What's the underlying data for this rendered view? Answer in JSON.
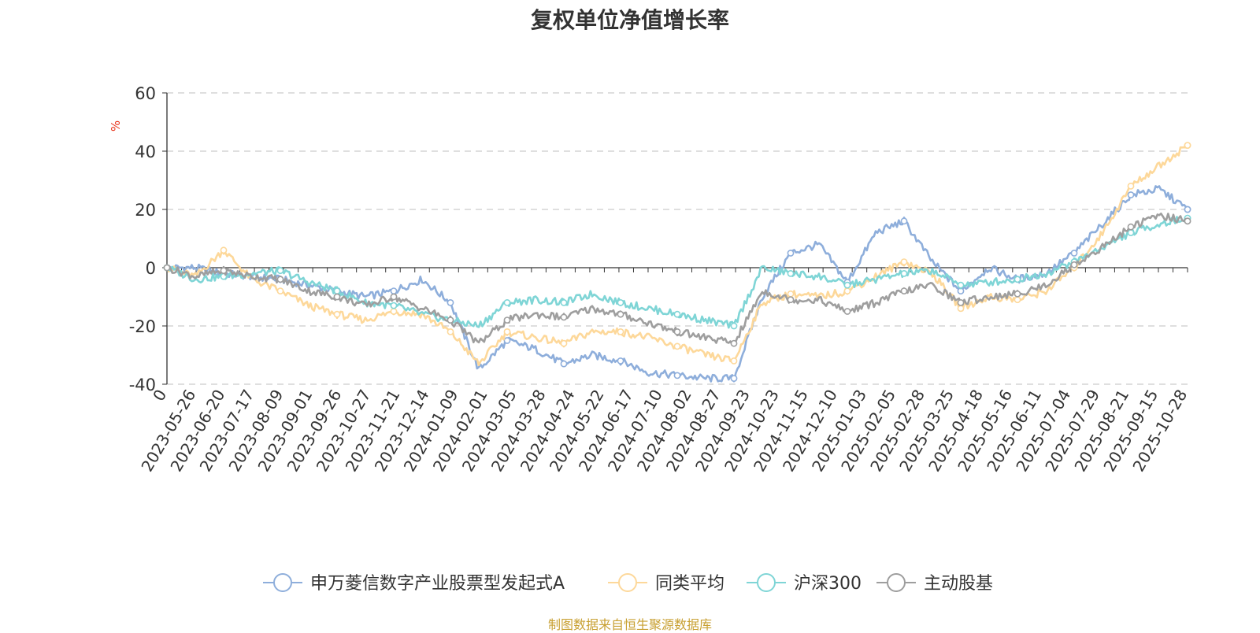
{
  "chart_data": {
    "type": "line",
    "title": "复权单位净值增长率",
    "ylabel": "%",
    "ylim": [
      -40,
      60
    ],
    "yticks": [
      -40,
      -20,
      0,
      20,
      40,
      60
    ],
    "xticks": [
      "0",
      "2023-05-26",
      "2023-06-20",
      "2023-07-17",
      "2023-08-09",
      "2023-09-01",
      "2023-09-26",
      "2023-10-27",
      "2023-11-21",
      "2023-12-14",
      "2024-01-09",
      "2024-02-01",
      "2024-03-05",
      "2024-03-28",
      "2024-04-24",
      "2024-05-22",
      "2024-06-17",
      "2024-07-10",
      "2024-08-02",
      "2024-08-27",
      "2024-09-23",
      "2024-10-23",
      "2024-11-15",
      "2024-12-10",
      "2025-01-03",
      "2025-02-05",
      "2025-02-28",
      "2025-03-25",
      "2025-04-18",
      "2025-05-16",
      "2025-06-11",
      "2025-07-04",
      "2025-07-29",
      "2025-08-21",
      "2025-09-15",
      "2025-10-28"
    ],
    "grid": true,
    "legend_position": "bottom",
    "series": [
      {
        "name": "申万菱信数字产业股票型发起式A",
        "color": "#8eaedb",
        "values": [
          0,
          0,
          -2,
          -3,
          -4,
          -6,
          -8,
          -10,
          -8,
          -4,
          -12,
          -35,
          -25,
          -28,
          -33,
          -30,
          -32,
          -36,
          -37,
          -38,
          -38,
          -10,
          5,
          8,
          -5,
          12,
          16,
          2,
          -8,
          0,
          -4,
          -2,
          5,
          15,
          25,
          27,
          20
        ]
      },
      {
        "name": "同类平均",
        "color": "#fdd89a",
        "values": [
          0,
          -3,
          6,
          -4,
          -8,
          -13,
          -16,
          -18,
          -15,
          -16,
          -22,
          -33,
          -22,
          -24,
          -26,
          -22,
          -22,
          -24,
          -27,
          -30,
          -32,
          -12,
          -9,
          -10,
          -8,
          -3,
          2,
          -2,
          -14,
          -10,
          -11,
          -8,
          0,
          12,
          28,
          35,
          42
        ]
      },
      {
        "name": "沪深300",
        "color": "#7fd5d6",
        "values": [
          0,
          -4,
          -3,
          -2,
          -1,
          -5,
          -8,
          -12,
          -13,
          -16,
          -18,
          -20,
          -12,
          -11,
          -12,
          -9,
          -12,
          -14,
          -16,
          -18,
          -20,
          0,
          -2,
          -3,
          -6,
          -4,
          -2,
          -1,
          -6,
          -5,
          -4,
          -2,
          2,
          7,
          12,
          15,
          17
        ]
      },
      {
        "name": "主动股基",
        "color": "#9e9e9e",
        "values": [
          0,
          -3,
          -1,
          -3,
          -4,
          -8,
          -10,
          -13,
          -10,
          -14,
          -18,
          -26,
          -18,
          -16,
          -17,
          -14,
          -16,
          -19,
          -22,
          -24,
          -26,
          -8,
          -11,
          -11,
          -15,
          -12,
          -8,
          -6,
          -12,
          -10,
          -9,
          -6,
          1,
          7,
          14,
          18,
          16
        ]
      }
    ],
    "source": "制图数据来自恒生聚源数据库"
  }
}
